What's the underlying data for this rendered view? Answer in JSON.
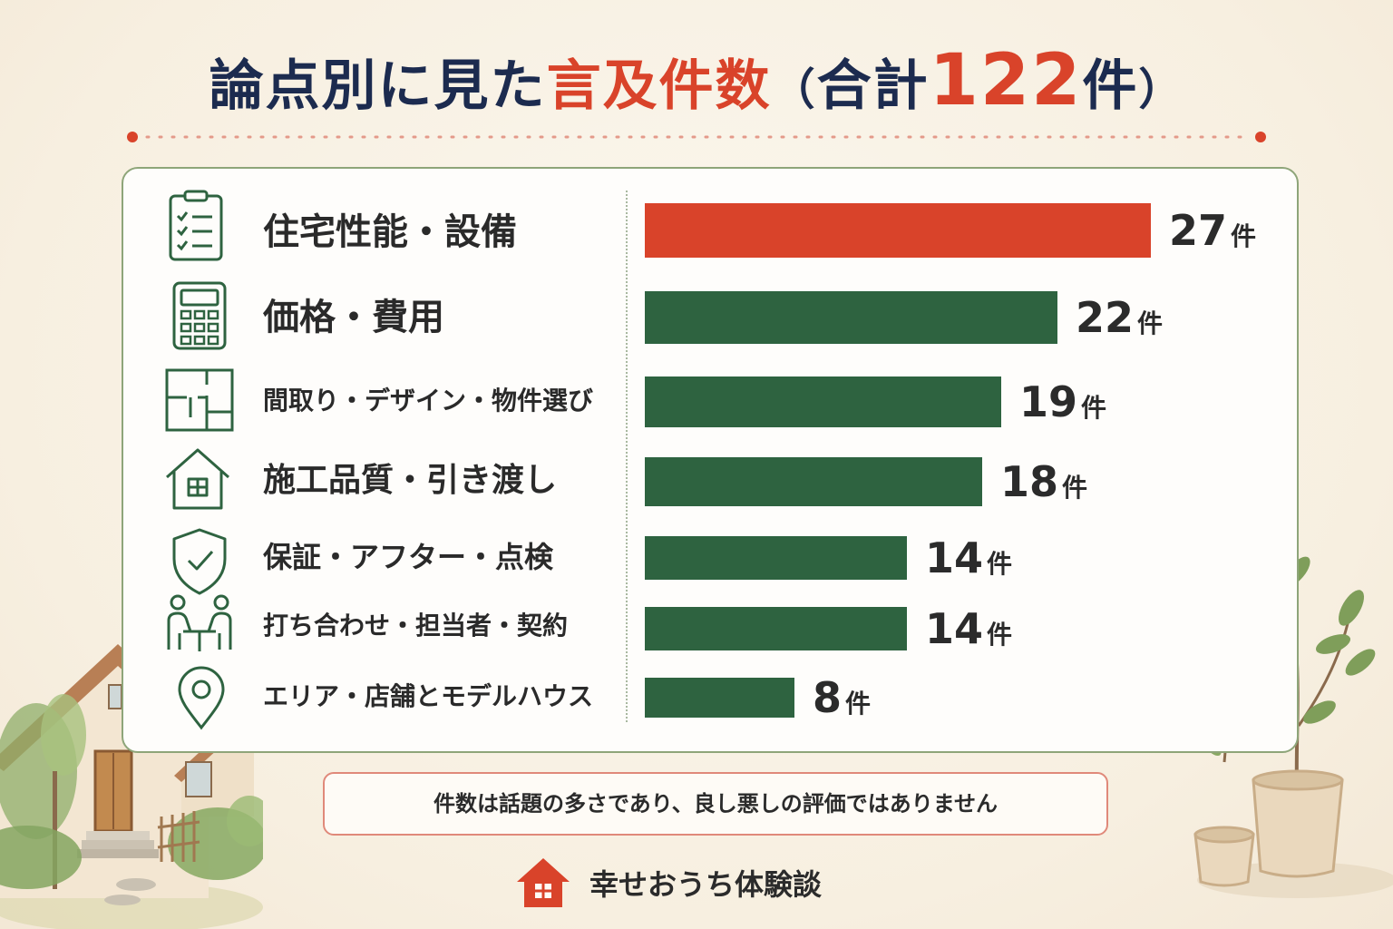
{
  "header": {
    "title_part1": "論点別に見た",
    "title_part2": "言及件数",
    "title_paren_open": "（",
    "title_total_label": "合計",
    "title_total_value": "122",
    "title_total_unit": "件",
    "title_paren_close": "）"
  },
  "colors": {
    "accent_red": "#d9432a",
    "bar_green": "#2e6340",
    "navy": "#1c2b4f",
    "panel_border": "#8ea579"
  },
  "chart_data": {
    "type": "bar",
    "orientation": "horizontal",
    "categories": [
      "住宅性能・設備",
      "価格・費用",
      "間取り・デザイン・物件選び",
      "施工品質・引き渡し",
      "保証・アフター・点検",
      "打ち合わせ・担当者・契約",
      "エリア・店舗とモデルハウス"
    ],
    "values": [
      27,
      22,
      19,
      18,
      14,
      14,
      8
    ],
    "value_unit": "件",
    "icons": [
      "checklist-icon",
      "calculator-icon",
      "floorplan-icon",
      "house-icon",
      "shield-check-icon",
      "meeting-icon",
      "location-pin-icon"
    ],
    "highlight_index": 0,
    "title": "論点別に見た言及件数（合計122件）",
    "xlabel": "",
    "ylabel": "",
    "xlim": [
      0,
      27
    ],
    "grid": false,
    "legend": "none"
  },
  "note": {
    "text": "件数は話題の多さであり、良し悪しの評価ではありません"
  },
  "brand": {
    "name": "幸せおうち体験談",
    "icon": "house-logo-icon"
  }
}
